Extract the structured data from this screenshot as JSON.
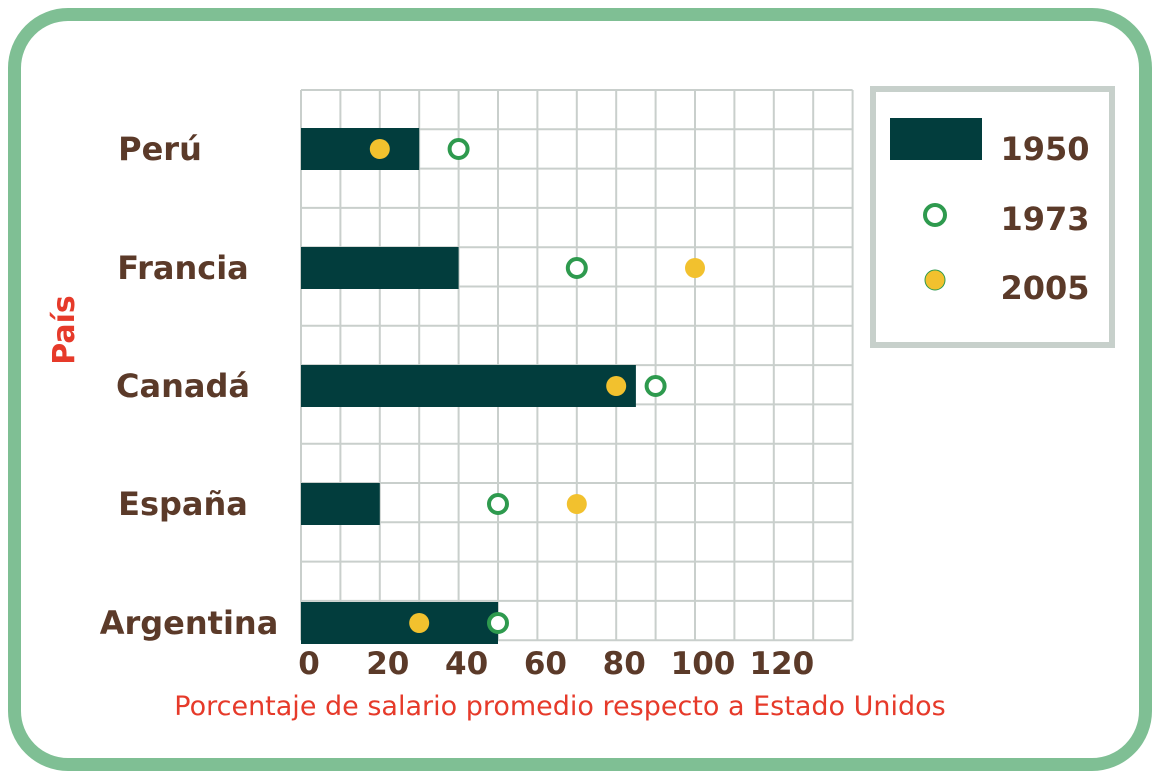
{
  "chart_data": {
    "type": "bar",
    "orientation": "horizontal",
    "categories": [
      "Perú",
      "Francia",
      "Canadá",
      "España",
      "Argentina"
    ],
    "series": [
      {
        "name": "1950",
        "type": "bar",
        "values": [
          30,
          40,
          85,
          20,
          50
        ]
      },
      {
        "name": "1973",
        "type": "point-hollow",
        "values": [
          40,
          70,
          90,
          50,
          50
        ]
      },
      {
        "name": "2005",
        "type": "point-filled",
        "values": [
          20,
          100,
          80,
          70,
          30
        ]
      }
    ],
    "title": "",
    "xlabel": "Porcentaje de salario promedio respecto a Estado Unidos",
    "ylabel": "País",
    "xticks": [
      "0",
      "20",
      "40",
      "60",
      "80",
      "100",
      "120"
    ],
    "xlim": [
      0,
      140
    ],
    "grid": true,
    "legend_position": "top-right",
    "colors": {
      "1950": "#023d3d",
      "1973": "#2e9a4e",
      "2005": "#f2c12e",
      "axis_text": "#5b3a29",
      "axis_title": "#e63a2a",
      "frame": "#7fbf94"
    }
  }
}
